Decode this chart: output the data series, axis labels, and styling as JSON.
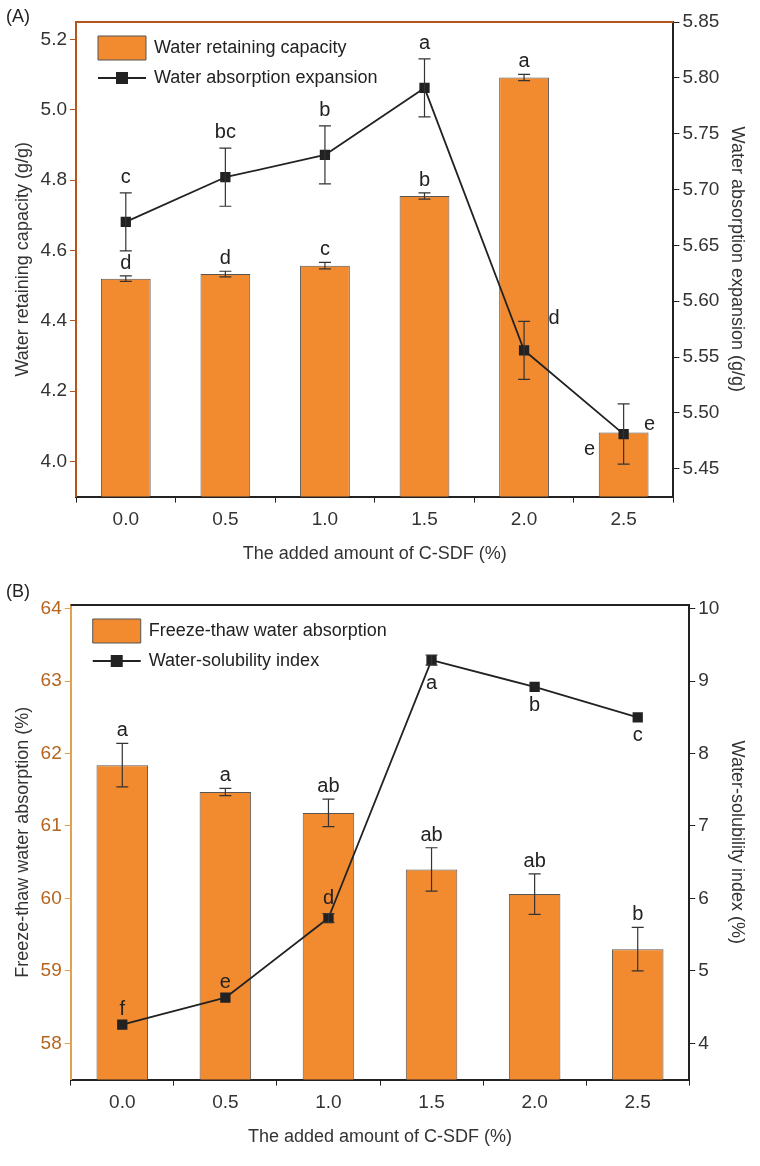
{
  "chart_data": [
    {
      "type": "bar",
      "title": "(A)",
      "categories": [
        "0.0",
        "0.5",
        "1.0",
        "1.5",
        "2.0",
        "2.5"
      ],
      "xlabel": "The added amount of C-SDF (%)",
      "ylabel": "Water retaining capacity (g/g)",
      "y2label": "Water absorption expansion (g/g)",
      "legend": "top left",
      "marker": "square",
      "grid": false,
      "ylim": [
        3.9,
        5.25
      ],
      "yticks": [
        {
          "value": 4,
          "label": "4.0"
        },
        4.2,
        4.4,
        4.6,
        4.8,
        {
          "value": 5,
          "label": "5.0"
        },
        5.2
      ],
      "y2lim": [
        5.425,
        5.85
      ],
      "y2ticks": [
        5.45,
        {
          "value": 5.5,
          "label": "5.50"
        },
        5.55,
        {
          "value": 5.6,
          "label": "5.60"
        },
        5.65,
        {
          "value": 5.7,
          "label": "5.70"
        },
        5.75,
        {
          "value": 5.8,
          "label": "5.80"
        },
        5.85
      ],
      "series": [
        {
          "name": "Water retaining capacity",
          "color": "#f28a30",
          "values": [
            4.52,
            4.533,
            4.557,
            4.755,
            5.092,
            4.082
          ],
          "errors": [
            0.008,
            0.008,
            0.009,
            0.009,
            0.009,
            null
          ],
          "value_labels": [
            "d",
            "d",
            "c",
            "b",
            "a",
            "e"
          ]
        },
        {
          "name": "Water absorption expansion",
          "type": "line",
          "axis": "y2",
          "color": "#222222",
          "values": [
            5.671,
            5.711,
            5.731,
            5.791,
            5.556,
            5.481
          ],
          "errors": [
            0.026,
            0.026,
            0.026,
            0.026,
            0.026,
            0.027
          ],
          "value_labels": [
            "c",
            "bc",
            "b",
            "a",
            "d",
            "e"
          ]
        }
      ]
    },
    {
      "type": "bar",
      "title": "(B)",
      "categories": [
        "0.0",
        "0.5",
        "1.0",
        "1.5",
        "2.0",
        "2.5"
      ],
      "xlabel": "The added amount of C-SDF (%)",
      "ylabel": "Freeze-thaw water absorption (%)",
      "y2label": "Water-solubility index (%)",
      "legend": "top left",
      "marker": "square",
      "grid": false,
      "ylim": [
        57.5,
        64.05
      ],
      "yticks": [
        58,
        59,
        60,
        61,
        62,
        63,
        64
      ],
      "y2lim": [
        3.5,
        10.05
      ],
      "y2ticks": [
        4,
        5,
        6,
        7,
        8,
        9,
        10
      ],
      "series": [
        {
          "name": "Freeze-thaw water absorption",
          "color": "#f28a30",
          "values": [
            61.84,
            61.47,
            61.18,
            60.4,
            60.06,
            59.3
          ],
          "errors": [
            0.3,
            0.05,
            0.19,
            0.3,
            0.28,
            0.3
          ],
          "value_labels": [
            "a",
            "a",
            "ab",
            "ab",
            "ab",
            "b"
          ]
        },
        {
          "name": "Water-solubility index",
          "type": "line",
          "axis": "y2",
          "color": "#222222",
          "values": [
            4.26,
            4.63,
            5.73,
            9.29,
            8.92,
            8.5
          ],
          "errors": [
            null,
            null,
            0.06,
            0.07,
            null,
            null
          ],
          "value_labels": [
            "f",
            "e",
            "d",
            "a",
            "b",
            "c"
          ]
        }
      ]
    }
  ]
}
